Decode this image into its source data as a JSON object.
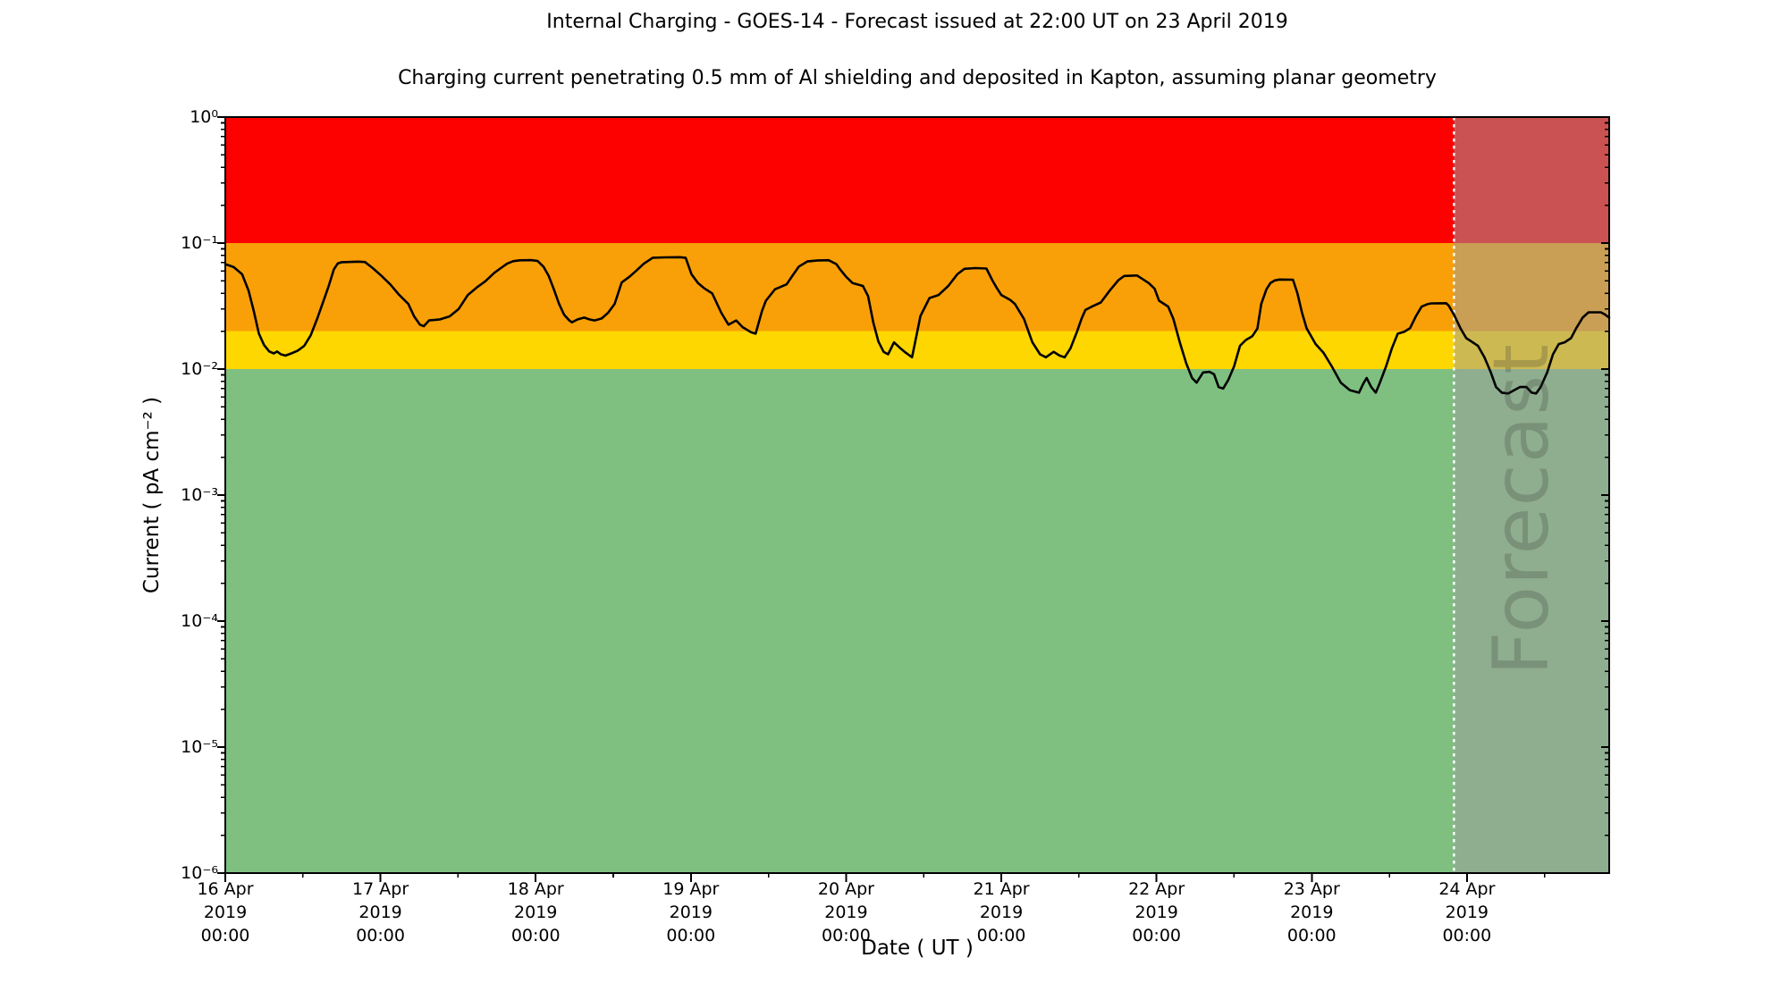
{
  "figure": {
    "title": "Internal Charging - GOES-14 - Forecast issued at 22:00 UT on 23 April 2019",
    "subtitle": "Charging current penetrating 0.5 mm of Al shielding and deposited in Kapton, assuming planar geometry"
  },
  "chart_data": {
    "type": "line",
    "title": "Internal Charging - GOES-14 - Forecast issued at 22:00 UT on 23 April 2019",
    "subtitle": "Charging current penetrating 0.5 mm of Al shielding and deposited in Kapton, assuming planar geometry",
    "xlabel": "Date ( UT )",
    "ylabel": "Current ( pA cm⁻² )",
    "yscale": "log",
    "ylim": [
      1e-06,
      1
    ],
    "x_axis_start": "16 Apr 2019 00:00 UT",
    "xlim_hours": [
      0,
      214
    ],
    "grid": false,
    "x_ticks": {
      "major_every_hours": 24,
      "minor_every_hours": 12,
      "labels": [
        {
          "date": "16 Apr",
          "year": "2019",
          "time": "00:00"
        },
        {
          "date": "17 Apr",
          "year": "2019",
          "time": "00:00"
        },
        {
          "date": "18 Apr",
          "year": "2019",
          "time": "00:00"
        },
        {
          "date": "19 Apr",
          "year": "2019",
          "time": "00:00"
        },
        {
          "date": "20 Apr",
          "year": "2019",
          "time": "00:00"
        },
        {
          "date": "21 Apr",
          "year": "2019",
          "time": "00:00"
        },
        {
          "date": "22 Apr",
          "year": "2019",
          "time": "00:00"
        },
        {
          "date": "23 Apr",
          "year": "2019",
          "time": "00:00"
        },
        {
          "date": "24 Apr",
          "year": "2019",
          "time": "00:00"
        }
      ]
    },
    "y_ticks": {
      "labels": [
        "10⁰",
        "10⁻¹",
        "10⁻²",
        "10⁻³",
        "10⁻⁴",
        "10⁻⁵",
        "10⁻⁶"
      ],
      "exponents": [
        0,
        -1,
        -2,
        -3,
        -4,
        -5,
        -6
      ]
    },
    "bands": [
      {
        "name": "green-quiet",
        "from": 1e-06,
        "to": 0.01,
        "color": "#7fc080"
      },
      {
        "name": "yellow-alert",
        "from": 0.01,
        "to": 0.02,
        "color": "#fed700"
      },
      {
        "name": "orange-alert",
        "from": 0.02,
        "to": 0.1,
        "color": "#f9a008"
      },
      {
        "name": "red-alert",
        "from": 0.1,
        "to": 1.0,
        "color": "#fd0000"
      }
    ],
    "forecast": {
      "label": "Forecast",
      "issued_at": "22:00 UT on 23 April 2019",
      "start_hours": 190,
      "end_hours": 214,
      "divider_color": "#ffffff",
      "overlay_color": "rgba(158,158,158,0.52)"
    },
    "series": [
      {
        "name": "charging-current",
        "color": "#000000",
        "points": [
          [
            0,
            0.068
          ],
          [
            1.3,
            0.0645
          ],
          [
            2.6,
            0.0566
          ],
          [
            3.6,
            0.042
          ],
          [
            4.4,
            0.029
          ],
          [
            5.2,
            0.0191
          ],
          [
            6,
            0.0155
          ],
          [
            6.8,
            0.0138
          ],
          [
            7.5,
            0.0133
          ],
          [
            8,
            0.0138
          ],
          [
            8.6,
            0.0131
          ],
          [
            9.3,
            0.0128
          ],
          [
            10.2,
            0.0133
          ],
          [
            11.2,
            0.014
          ],
          [
            12.2,
            0.0153
          ],
          [
            13.2,
            0.0185
          ],
          [
            14.2,
            0.025
          ],
          [
            15.2,
            0.035
          ],
          [
            16,
            0.0457
          ],
          [
            16.8,
            0.062
          ],
          [
            17.4,
            0.069
          ],
          [
            18,
            0.0705
          ],
          [
            19,
            0.0707
          ],
          [
            20.5,
            0.0712
          ],
          [
            21.6,
            0.0707
          ],
          [
            22.8,
            0.0633
          ],
          [
            24.1,
            0.0553
          ],
          [
            25.5,
            0.047
          ],
          [
            26.9,
            0.0387
          ],
          [
            28.3,
            0.0329
          ],
          [
            29.2,
            0.0262
          ],
          [
            30.1,
            0.0225
          ],
          [
            30.7,
            0.0219
          ],
          [
            31.5,
            0.0243
          ],
          [
            33.2,
            0.0248
          ],
          [
            34.7,
            0.0262
          ],
          [
            36.1,
            0.03
          ],
          [
            37.5,
            0.0387
          ],
          [
            38.9,
            0.0445
          ],
          [
            40.2,
            0.0497
          ],
          [
            41.6,
            0.0581
          ],
          [
            42.6,
            0.0633
          ],
          [
            43.6,
            0.0688
          ],
          [
            44.5,
            0.0718
          ],
          [
            45.5,
            0.073
          ],
          [
            47.3,
            0.0732
          ],
          [
            48.3,
            0.072
          ],
          [
            49.2,
            0.065
          ],
          [
            50,
            0.055
          ],
          [
            50.8,
            0.043
          ],
          [
            51.6,
            0.033
          ],
          [
            52.4,
            0.027
          ],
          [
            53.2,
            0.0243
          ],
          [
            53.6,
            0.0235
          ],
          [
            54.5,
            0.0248
          ],
          [
            55.5,
            0.0256
          ],
          [
            56.3,
            0.0248
          ],
          [
            57.1,
            0.0243
          ],
          [
            58.2,
            0.0252
          ],
          [
            59.2,
            0.028
          ],
          [
            60.2,
            0.0329
          ],
          [
            61.3,
            0.0487
          ],
          [
            62.5,
            0.054
          ],
          [
            63.5,
            0.06
          ],
          [
            64.7,
            0.0685
          ],
          [
            66.1,
            0.0765
          ],
          [
            68,
            0.077
          ],
          [
            70.3,
            0.0773
          ],
          [
            71.2,
            0.0763
          ],
          [
            72.1,
            0.0566
          ],
          [
            73.1,
            0.0481
          ],
          [
            74,
            0.044
          ],
          [
            75.3,
            0.0398
          ],
          [
            76.7,
            0.028
          ],
          [
            77.8,
            0.0225
          ],
          [
            79,
            0.0243
          ],
          [
            80,
            0.0215
          ],
          [
            81.3,
            0.0196
          ],
          [
            82,
            0.0191
          ],
          [
            83,
            0.029
          ],
          [
            83.6,
            0.0349
          ],
          [
            85,
            0.043
          ],
          [
            86.8,
            0.047
          ],
          [
            87.8,
            0.056
          ],
          [
            88.7,
            0.0651
          ],
          [
            90,
            0.0714
          ],
          [
            91.6,
            0.0729
          ],
          [
            93.3,
            0.0731
          ],
          [
            94.5,
            0.068
          ],
          [
            95.1,
            0.0616
          ],
          [
            96,
            0.054
          ],
          [
            97,
            0.0481
          ],
          [
            98.6,
            0.0457
          ],
          [
            99.4,
            0.038
          ],
          [
            100.2,
            0.0235
          ],
          [
            101,
            0.0165
          ],
          [
            101.8,
            0.0137
          ],
          [
            102.5,
            0.0131
          ],
          [
            103.4,
            0.0163
          ],
          [
            104.4,
            0.0146
          ],
          [
            105.2,
            0.0135
          ],
          [
            106.2,
            0.0124
          ],
          [
            107.5,
            0.0264
          ],
          [
            108.9,
            0.0366
          ],
          [
            110.3,
            0.0387
          ],
          [
            111.8,
            0.0457
          ],
          [
            113.2,
            0.0566
          ],
          [
            114.3,
            0.0625
          ],
          [
            116,
            0.0633
          ],
          [
            117.7,
            0.0628
          ],
          [
            118.6,
            0.0508
          ],
          [
            119.3,
            0.044
          ],
          [
            120,
            0.0387
          ],
          [
            121.4,
            0.0353
          ],
          [
            122.1,
            0.0329
          ],
          [
            123.5,
            0.025
          ],
          [
            124.8,
            0.0163
          ],
          [
            126,
            0.0131
          ],
          [
            126.9,
            0.0124
          ],
          [
            128.1,
            0.0137
          ],
          [
            129,
            0.0128
          ],
          [
            129.8,
            0.0124
          ],
          [
            130.7,
            0.0146
          ],
          [
            131.7,
            0.0198
          ],
          [
            132.4,
            0.025
          ],
          [
            133,
            0.0295
          ],
          [
            134,
            0.0313
          ],
          [
            135.4,
            0.0338
          ],
          [
            136.8,
            0.0422
          ],
          [
            138.1,
            0.0508
          ],
          [
            139,
            0.0548
          ],
          [
            141,
            0.0553
          ],
          [
            142.8,
            0.0481
          ],
          [
            143.7,
            0.0434
          ],
          [
            144.4,
            0.0349
          ],
          [
            145.8,
            0.0313
          ],
          [
            146.6,
            0.025
          ],
          [
            147.6,
            0.0163
          ],
          [
            148.6,
            0.0111
          ],
          [
            149.5,
            0.0085
          ],
          [
            150.2,
            0.0078
          ],
          [
            151.2,
            0.0094
          ],
          [
            152.2,
            0.0095
          ],
          [
            152.9,
            0.0091
          ],
          [
            153.6,
            0.0072
          ],
          [
            154.3,
            0.007
          ],
          [
            155.1,
            0.0082
          ],
          [
            156,
            0.0105
          ],
          [
            156.9,
            0.0153
          ],
          [
            157.8,
            0.017
          ],
          [
            158.8,
            0.0182
          ],
          [
            159.6,
            0.021
          ],
          [
            160.2,
            0.0329
          ],
          [
            161,
            0.043
          ],
          [
            161.6,
            0.0481
          ],
          [
            162.3,
            0.0505
          ],
          [
            163,
            0.0514
          ],
          [
            165.1,
            0.0512
          ],
          [
            165.8,
            0.0398
          ],
          [
            166.5,
            0.028
          ],
          [
            167.2,
            0.0211
          ],
          [
            168.6,
            0.0158
          ],
          [
            169.8,
            0.0135
          ],
          [
            171.1,
            0.0105
          ],
          [
            172.5,
            0.0078
          ],
          [
            173.9,
            0.0068
          ],
          [
            175.3,
            0.0065
          ],
          [
            176,
            0.0077
          ],
          [
            176.5,
            0.0085
          ],
          [
            177.2,
            0.0072
          ],
          [
            177.9,
            0.0065
          ],
          [
            178.5,
            0.0077
          ],
          [
            179.5,
            0.0105
          ],
          [
            180.4,
            0.0146
          ],
          [
            181.3,
            0.0191
          ],
          [
            182.3,
            0.0198
          ],
          [
            183.2,
            0.0211
          ],
          [
            184.1,
            0.0262
          ],
          [
            185,
            0.0313
          ],
          [
            186,
            0.0329
          ],
          [
            186.5,
            0.0332
          ],
          [
            188.8,
            0.0333
          ],
          [
            189.2,
            0.0318
          ],
          [
            190,
            0.027
          ],
          [
            191,
            0.0211
          ],
          [
            191.9,
            0.0176
          ],
          [
            192.9,
            0.0163
          ],
          [
            193.7,
            0.0153
          ],
          [
            194.7,
            0.0124
          ],
          [
            195.7,
            0.0094
          ],
          [
            196.5,
            0.0072
          ],
          [
            197.4,
            0.0065
          ],
          [
            198.4,
            0.0064
          ],
          [
            199.3,
            0.0068
          ],
          [
            200.2,
            0.0072
          ],
          [
            201.2,
            0.0072
          ],
          [
            202,
            0.0065
          ],
          [
            202.7,
            0.0064
          ],
          [
            203.4,
            0.0072
          ],
          [
            204.4,
            0.0094
          ],
          [
            205.3,
            0.0131
          ],
          [
            206.2,
            0.0158
          ],
          [
            207.1,
            0.0163
          ],
          [
            208.1,
            0.0176
          ],
          [
            208.9,
            0.0211
          ],
          [
            209.9,
            0.0256
          ],
          [
            210.8,
            0.0282
          ],
          [
            212.7,
            0.0282
          ],
          [
            213.3,
            0.0272
          ],
          [
            214,
            0.0256
          ]
        ]
      }
    ]
  },
  "layout_colors": {
    "background": "#ffffff",
    "axis": "#000000",
    "watermark_text": "rgba(55,55,55,0.24)"
  }
}
